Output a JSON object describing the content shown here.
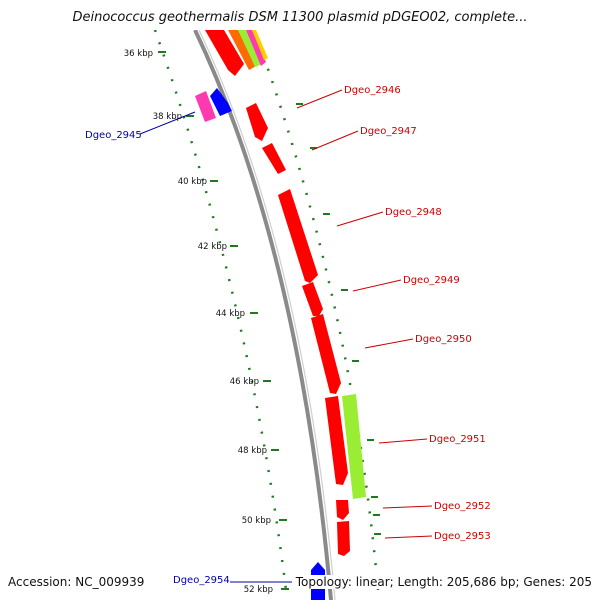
{
  "title": "Deinococcus geothermalis DSM 11300 plasmid pDGEO02, complete...",
  "accession": "Accession: NC_009939",
  "summary": "Topology: linear; Length: 205,686 bp; Genes: 205",
  "colors": {
    "forward_gene": "#ff0000",
    "reverse_gene": "#0000ff",
    "pink_gene": "#ff3ab0",
    "green_gene": "#99ee33",
    "backbone": "#8a8a8a",
    "tick": "#1f7a1f",
    "forward_label": "#cc0000",
    "reverse_label": "#0000aa"
  },
  "ruler_labels": [
    "36 kbp",
    "38 kbp",
    "40 kbp",
    "42 kbp",
    "44 kbp",
    "46 kbp",
    "48 kbp",
    "50 kbp",
    "52 kbp"
  ],
  "gene_labels": [
    {
      "name": "Dgeo_2945",
      "strand": "reverse"
    },
    {
      "name": "Dgeo_2946",
      "strand": "forward"
    },
    {
      "name": "Dgeo_2947",
      "strand": "forward"
    },
    {
      "name": "Dgeo_2948",
      "strand": "forward"
    },
    {
      "name": "Dgeo_2949",
      "strand": "forward"
    },
    {
      "name": "Dgeo_2950",
      "strand": "forward"
    },
    {
      "name": "Dgeo_2951",
      "strand": "forward"
    },
    {
      "name": "Dgeo_2952",
      "strand": "forward"
    },
    {
      "name": "Dgeo_2953",
      "strand": "forward"
    },
    {
      "name": "Dgeo_2954",
      "strand": "reverse"
    }
  ]
}
